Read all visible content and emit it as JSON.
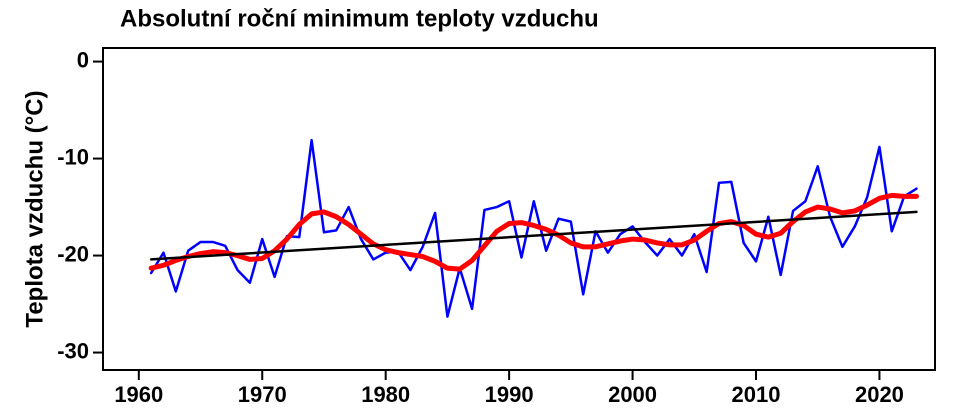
{
  "chart_data": {
    "type": "line",
    "title": "Absolutní roční minimum teploty vzduchu",
    "ylabel": "Teplota vzduchu (°C)",
    "x": [
      1961,
      1962,
      1963,
      1964,
      1965,
      1966,
      1967,
      1968,
      1969,
      1970,
      1971,
      1972,
      1973,
      1974,
      1975,
      1976,
      1977,
      1978,
      1979,
      1980,
      1981,
      1982,
      1983,
      1984,
      1985,
      1986,
      1987,
      1988,
      1989,
      1990,
      1991,
      1992,
      1993,
      1994,
      1995,
      1996,
      1997,
      1998,
      1999,
      2000,
      2001,
      2002,
      2003,
      2004,
      2005,
      2006,
      2007,
      2008,
      2009,
      2010,
      2011,
      2012,
      2013,
      2014,
      2015,
      2016,
      2017,
      2018,
      2019,
      2020,
      2021,
      2022,
      2023
    ],
    "series": [
      {
        "color": "#0000ff",
        "width": 2.5,
        "values": [
          -21.8,
          -19.7,
          -23.7,
          -19.5,
          -18.6,
          -18.6,
          -19.0,
          -21.5,
          -22.8,
          -18.3,
          -22.2,
          -18.0,
          -18.1,
          -8.1,
          -17.6,
          -17.4,
          -15.0,
          -18.3,
          -20.4,
          -19.7,
          -19.6,
          -21.5,
          -19.1,
          -15.6,
          -26.3,
          -21.3,
          -25.5,
          -15.3,
          -15.0,
          -14.4,
          -20.2,
          -14.4,
          -19.5,
          -16.2,
          -16.5,
          -24.0,
          -17.5,
          -19.7,
          -17.8,
          -17.0,
          -18.6,
          -20.0,
          -18.3,
          -20.0,
          -17.8,
          -21.7,
          -12.5,
          -12.4,
          -18.7,
          -20.6,
          -16.0,
          -22.0,
          -15.4,
          -14.4,
          -10.8,
          -16.0,
          -19.1,
          -17.0,
          -14.0,
          -8.8,
          -17.5,
          -13.9,
          -13.1
        ]
      },
      {
        "color": "#ff0000",
        "width": 5,
        "values": [
          -21.3,
          -21.0,
          -20.5,
          -20.1,
          -19.8,
          -19.6,
          -19.7,
          -20.0,
          -20.4,
          -20.3,
          -19.5,
          -18.3,
          -16.8,
          -15.7,
          -15.5,
          -16.0,
          -16.8,
          -17.8,
          -18.8,
          -19.4,
          -19.7,
          -19.9,
          -20.1,
          -20.6,
          -21.3,
          -21.4,
          -20.5,
          -19.0,
          -17.5,
          -16.7,
          -16.6,
          -16.9,
          -17.3,
          -17.9,
          -18.7,
          -19.1,
          -19.1,
          -18.8,
          -18.5,
          -18.3,
          -18.4,
          -18.7,
          -18.9,
          -18.9,
          -18.4,
          -17.5,
          -16.7,
          -16.5,
          -16.9,
          -17.8,
          -18.1,
          -17.7,
          -16.5,
          -15.5,
          -15.0,
          -15.2,
          -15.6,
          -15.4,
          -14.8,
          -14.1,
          -13.8,
          -13.9,
          -13.9
        ]
      },
      {
        "color": "#000000",
        "width": 2.5,
        "x": [
          1961,
          2023
        ],
        "values": [
          -20.4,
          -15.5
        ]
      }
    ],
    "xlim": [
      1957.1,
      2024.5
    ],
    "ylim": [
      -31.8,
      1.4
    ],
    "xticks": [
      1960,
      1970,
      1980,
      1990,
      2000,
      2010,
      2020
    ],
    "yticks": [
      0,
      -10,
      -20,
      -30
    ]
  }
}
